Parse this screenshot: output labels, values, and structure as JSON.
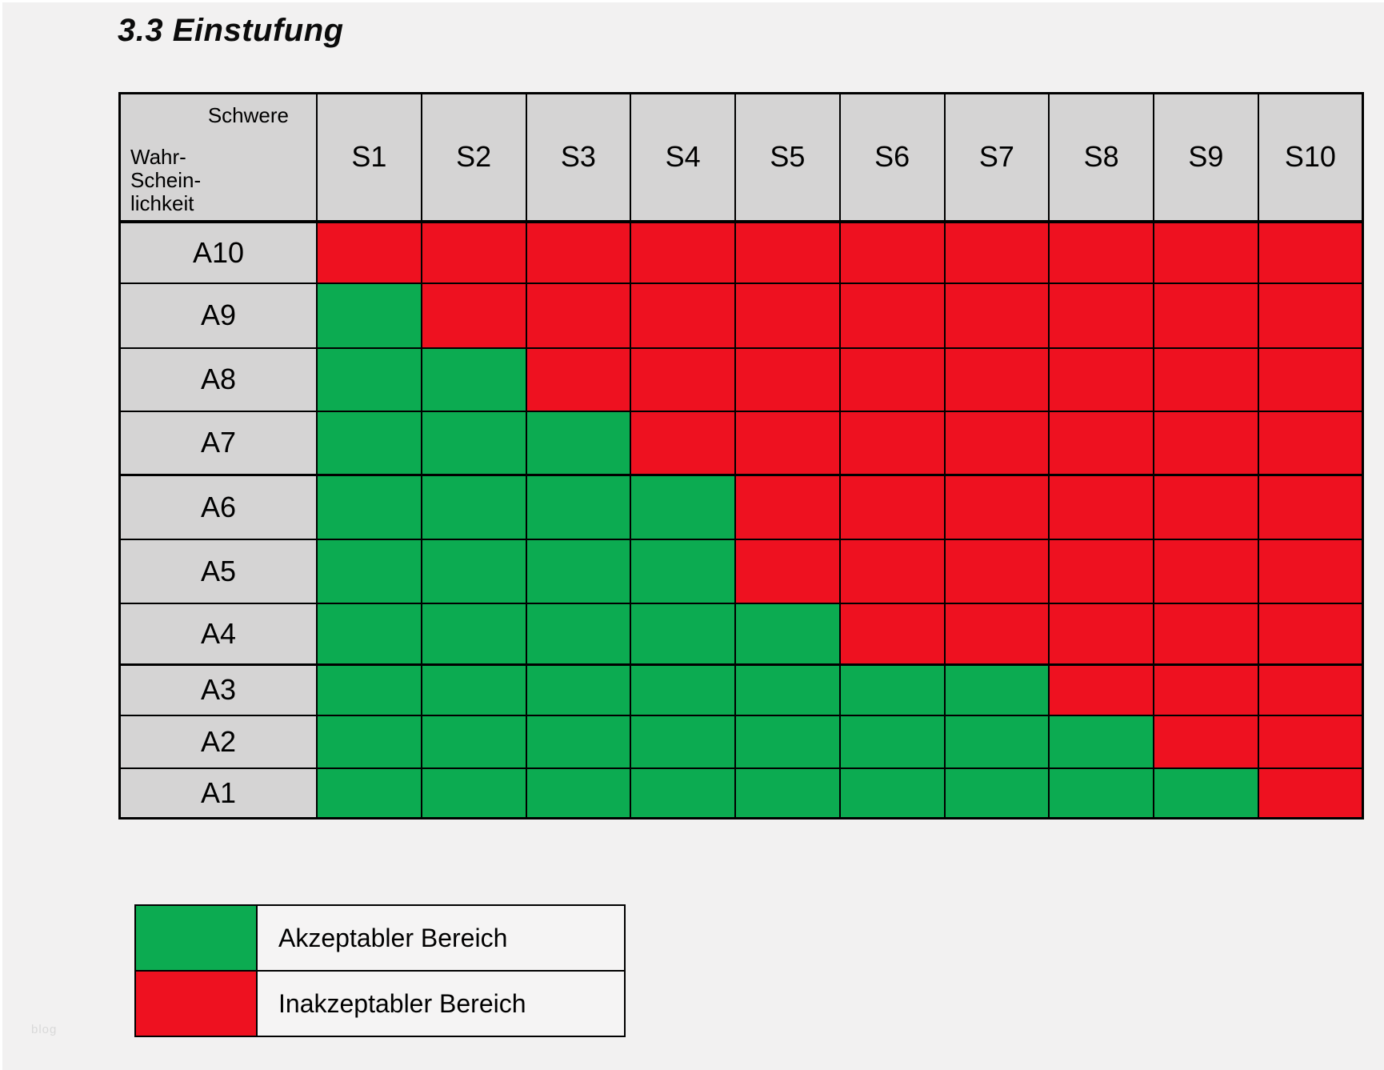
{
  "page": {
    "title": "3.3 Einstufung",
    "watermark": "blog"
  },
  "chart_data": {
    "type": "heatmap",
    "title": "3.3 Einstufung",
    "corner": {
      "col_axis_label": "Schwere",
      "row_axis_label": "Wahr-\nSchein-\nlichkeit"
    },
    "columns": [
      "S1",
      "S2",
      "S3",
      "S4",
      "S5",
      "S6",
      "S7",
      "S8",
      "S9",
      "S10"
    ],
    "rows": [
      "A10",
      "A9",
      "A8",
      "A7",
      "A6",
      "A5",
      "A4",
      "A3",
      "A2",
      "A1"
    ],
    "cell_states": [
      [
        "red",
        "red",
        "red",
        "red",
        "red",
        "red",
        "red",
        "red",
        "red",
        "red"
      ],
      [
        "green",
        "red",
        "red",
        "red",
        "red",
        "red",
        "red",
        "red",
        "red",
        "red"
      ],
      [
        "green",
        "green",
        "red",
        "red",
        "red",
        "red",
        "red",
        "red",
        "red",
        "red"
      ],
      [
        "green",
        "green",
        "green",
        "red",
        "red",
        "red",
        "red",
        "red",
        "red",
        "red"
      ],
      [
        "green",
        "green",
        "green",
        "green",
        "red",
        "red",
        "red",
        "red",
        "red",
        "red"
      ],
      [
        "green",
        "green",
        "green",
        "green",
        "red",
        "red",
        "red",
        "red",
        "red",
        "red"
      ],
      [
        "green",
        "green",
        "green",
        "green",
        "green",
        "red",
        "red",
        "red",
        "red",
        "red"
      ],
      [
        "green",
        "green",
        "green",
        "green",
        "green",
        "green",
        "green",
        "red",
        "red",
        "red"
      ],
      [
        "green",
        "green",
        "green",
        "green",
        "green",
        "green",
        "green",
        "green",
        "red",
        "red"
      ],
      [
        "green",
        "green",
        "green",
        "green",
        "green",
        "green",
        "green",
        "green",
        "green",
        "red"
      ]
    ],
    "green_cells_per_row": {
      "A10": 0,
      "A9": 1,
      "A8": 2,
      "A7": 3,
      "A6": 4,
      "A5": 4,
      "A4": 5,
      "A3": 7,
      "A2": 8,
      "A1": 9
    },
    "colors": {
      "green": "#0cab51",
      "red": "#ee1120",
      "header_bg": "#d5d4d4",
      "grid": "#000000",
      "page_bg": "#f2f1f1"
    },
    "legend": [
      {
        "state": "green",
        "color": "#0cab51",
        "label": "Akzeptabler Bereich"
      },
      {
        "state": "red",
        "color": "#ee1120",
        "label": "Inakzeptabler Bereich"
      }
    ],
    "legend_position": "bottom-left",
    "grid": true
  }
}
